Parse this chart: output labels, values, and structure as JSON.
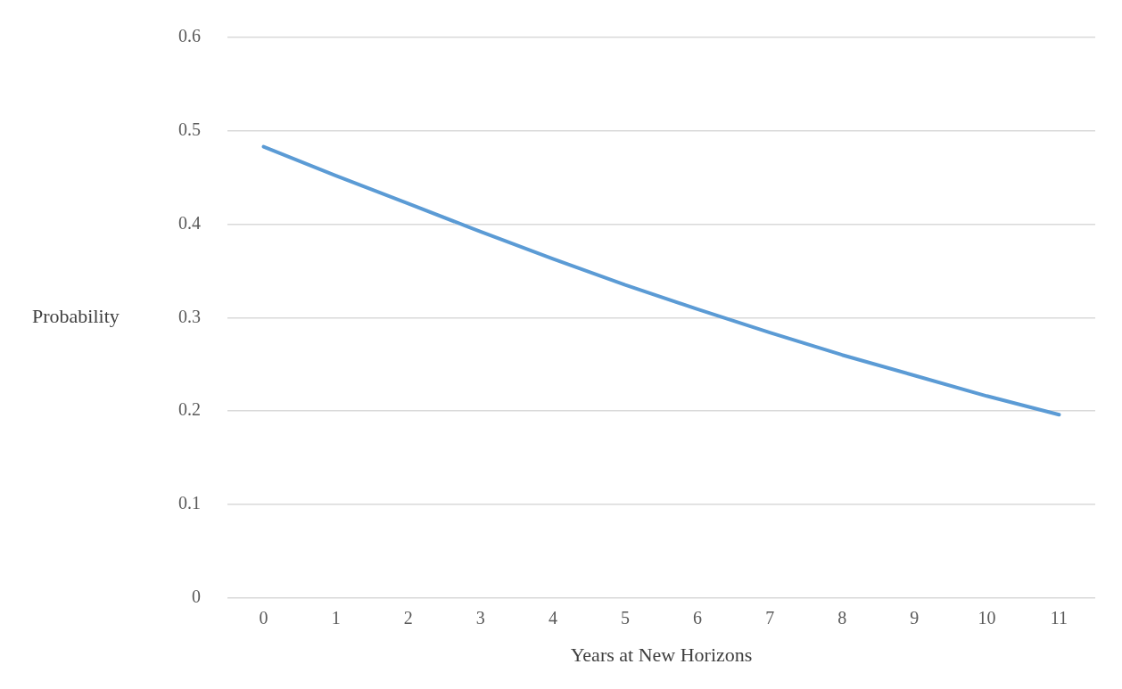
{
  "chart_data": {
    "type": "line",
    "xlabel": "Years at New Horizons",
    "ylabel": "Probability",
    "categories": [
      "0",
      "1",
      "2",
      "3",
      "4",
      "5",
      "6",
      "7",
      "8",
      "9",
      "10",
      "11"
    ],
    "series": [
      {
        "color": "#5b9bd5",
        "values": [
          0.483,
          0.452,
          0.422,
          0.392,
          0.363,
          0.335,
          0.309,
          0.284,
          0.26,
          0.238,
          0.216,
          0.196
        ]
      }
    ],
    "ylim": [
      0,
      0.6
    ],
    "yticks": [
      0,
      0.1,
      0.2,
      0.3,
      0.4,
      0.5,
      0.6
    ],
    "grid": "y",
    "legend": false,
    "marker": "none",
    "line_style": "solid"
  }
}
